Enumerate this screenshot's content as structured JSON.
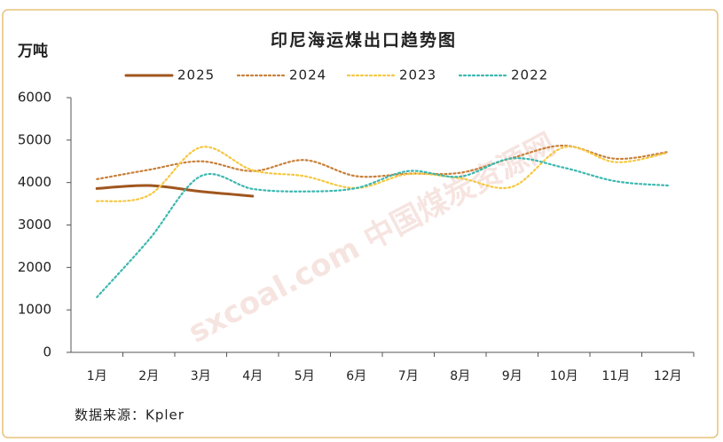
{
  "chart_data": {
    "type": "line",
    "title": "印尼海运煤出口趋势图",
    "y_label": "万吨",
    "source": "数据来源：Kpler",
    "watermark": "sxcoal.com 中国煤炭资源网",
    "categories": [
      "1月",
      "2月",
      "3月",
      "4月",
      "5月",
      "6月",
      "7月",
      "8月",
      "9月",
      "10月",
      "11月",
      "12月"
    ],
    "series": [
      {
        "name": "2025",
        "color": "#a0561e",
        "dash": "solid",
        "values": [
          3860,
          3930,
          3790,
          3680,
          null,
          null,
          null,
          null,
          null,
          null,
          null,
          null
        ]
      },
      {
        "name": "2024",
        "color": "#c8803a",
        "dash": "dotted",
        "values": [
          4080,
          4300,
          4500,
          4270,
          4530,
          4150,
          4210,
          4230,
          4580,
          4870,
          4560,
          4720
        ]
      },
      {
        "name": "2023",
        "color": "#f5c842",
        "dash": "dotted",
        "values": [
          3560,
          3700,
          4830,
          4290,
          4150,
          3870,
          4200,
          4100,
          3900,
          4830,
          4480,
          4700
        ]
      },
      {
        "name": "2022",
        "color": "#3bb8b0",
        "dash": "dotted",
        "values": [
          1300,
          2650,
          4150,
          3850,
          3790,
          3870,
          4270,
          4140,
          4570,
          4350,
          4030,
          3930
        ]
      }
    ],
    "ylim": [
      0,
      6000
    ],
    "yticks": [
      0,
      1000,
      2000,
      3000,
      4000,
      5000,
      6000
    ],
    "grid": false,
    "legend": "top"
  }
}
